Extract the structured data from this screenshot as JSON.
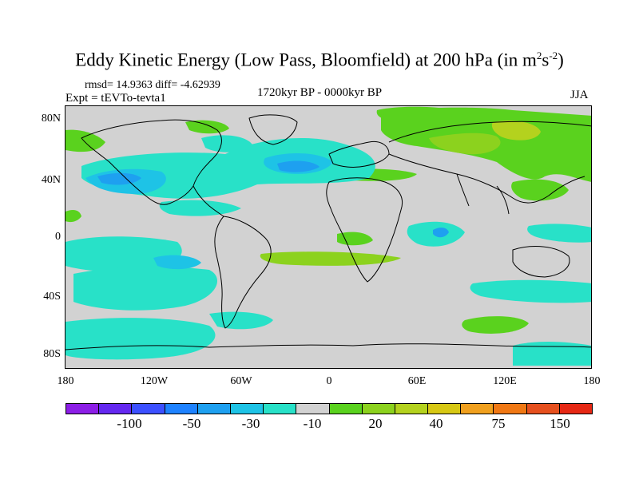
{
  "title": {
    "text": "Eddy Kinetic Energy (Low Pass, Bloomfield) at 200 hPa (in m",
    "sup1": "2",
    "mid": "s",
    "sup2": "-2",
    "end": ")"
  },
  "stats": "rmsd= 14.9363 diff= -4.62939",
  "experiment": "Expt = tEVTo-tevta1",
  "period": "1720kyr BP - 0000kyr BP",
  "season": "JJA",
  "axes": {
    "lat_ticks": [
      "80N",
      "40N",
      "0",
      "40S",
      "80S"
    ],
    "lon_ticks": [
      "180",
      "120W",
      "60W",
      "0",
      "60E",
      "120E",
      "180"
    ]
  },
  "colorbar": {
    "colors": [
      "#8c1ee6",
      "#6428f0",
      "#3c50ff",
      "#1e82ff",
      "#1ea0f0",
      "#1ec3e6",
      "#28e1c8",
      "#d2d2d2",
      "#5ad21e",
      "#8cd21e",
      "#b4d21e",
      "#d7c814",
      "#f0a01e",
      "#f07814",
      "#e6501e",
      "#e62814"
    ],
    "labels": [
      "-100",
      "-50",
      "-30",
      "-10",
      "20",
      "40",
      "75",
      "150"
    ]
  },
  "map_colors": {
    "neutral": "#d2d2d2",
    "cyan_light": "#28e1c8",
    "cyan": "#1ec3e6",
    "blue_light": "#1ea0f0",
    "blue": "#1e82ff",
    "green": "#5ad21e",
    "yellowgreen": "#8cd21e",
    "olive": "#b4d21e"
  }
}
